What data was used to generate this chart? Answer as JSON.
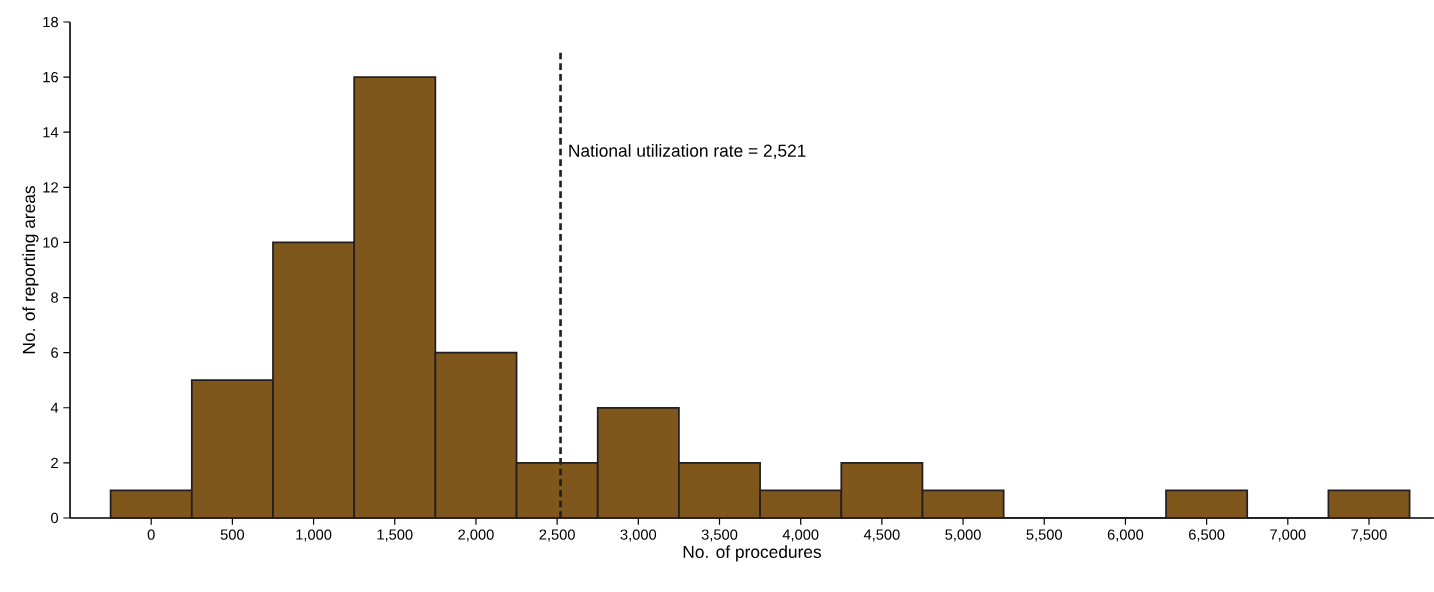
{
  "chart_data": {
    "type": "histogram",
    "xlabel": "No. of procedures",
    "ylabel": "No. of reporting areas",
    "bins": [
      -250,
      250,
      750,
      1250,
      1750,
      2250,
      2750,
      3250,
      3750,
      4250,
      4750,
      5250,
      5750,
      6250,
      6750,
      7250,
      7750
    ],
    "values": [
      1,
      5,
      10,
      16,
      6,
      2,
      4,
      2,
      1,
      2,
      1,
      0,
      0,
      1,
      0,
      1
    ],
    "color": "#7f561c",
    "xlim": [
      -500,
      7900
    ],
    "xticks": [
      {
        "value": 0,
        "label": "0"
      },
      {
        "value": 500,
        "label": "500"
      },
      {
        "value": 1000,
        "label": "1,000"
      },
      {
        "value": 1500,
        "label": "1,500"
      },
      {
        "value": 2000,
        "label": "2,000"
      },
      {
        "value": 2500,
        "label": "2,500"
      },
      {
        "value": 3000,
        "label": "3,000"
      },
      {
        "value": 3500,
        "label": "3,500"
      },
      {
        "value": 4000,
        "label": "4,000"
      },
      {
        "value": 4500,
        "label": "4,500"
      },
      {
        "value": 5000,
        "label": "5,000"
      },
      {
        "value": 5500,
        "label": "5,500"
      },
      {
        "value": 6000,
        "label": "6,000"
      },
      {
        "value": 6500,
        "label": "6,500"
      },
      {
        "value": 7000,
        "label": "7,000"
      },
      {
        "value": 7500,
        "label": "7,500"
      }
    ],
    "ylim": [
      0,
      18
    ],
    "yticks": [
      0,
      2,
      4,
      6,
      8,
      10,
      12,
      14,
      16,
      18
    ],
    "grid": false,
    "ref_lines": [
      {
        "axis": "x",
        "value": 2521,
        "label": "National utilization rate = 2,521",
        "color": "#231f20",
        "line_style": "dashed"
      }
    ]
  }
}
